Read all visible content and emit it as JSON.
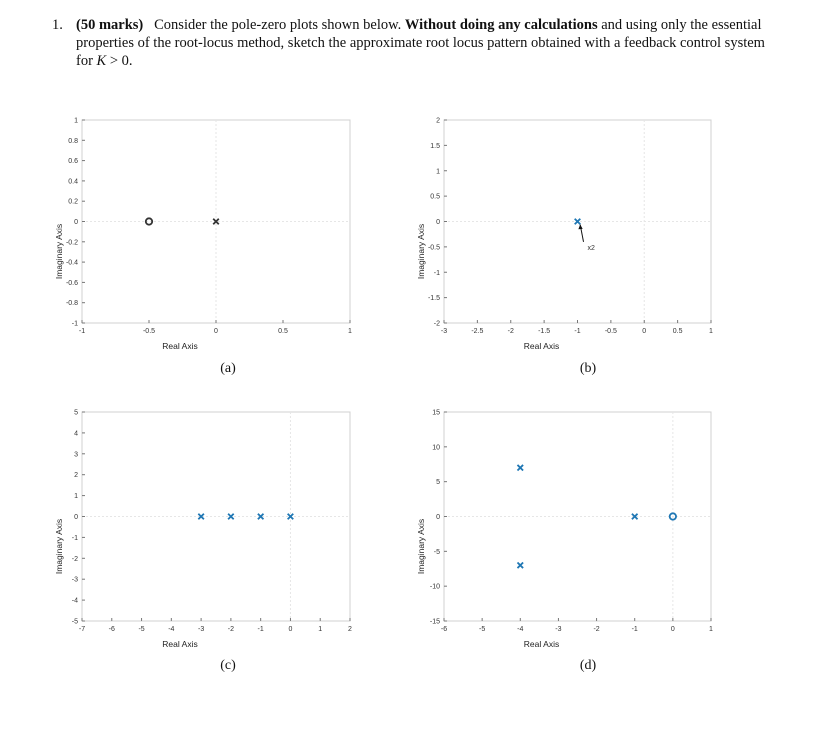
{
  "question": {
    "number": "1.",
    "marks": "(50 marks)",
    "text_1": "Consider the pole-zero plots shown below.",
    "bold_phrase": "Without doing any calculations",
    "text_2": "and using only the essential properties of the root-locus method, sketch the approximate root locus pattern obtained with a feedback control system for",
    "condition_var": "K",
    "condition_rest": "> 0."
  },
  "chart_data": [
    {
      "type": "scatter",
      "caption": "(a)",
      "xlabel": "Real Axis",
      "ylabel": "Imaginary Axis",
      "xlim": [
        -1,
        1
      ],
      "ylim": [
        -1,
        1
      ],
      "xticks": [
        -1,
        -0.5,
        0,
        0.5,
        1
      ],
      "xtick_labels": [
        "-1",
        "-0.5",
        "0",
        "0.5",
        "1"
      ],
      "yticks": [
        -1,
        -0.8,
        -0.6,
        -0.4,
        -0.2,
        0,
        0.2,
        0.4,
        0.6,
        0.8,
        1
      ],
      "ytick_labels": [
        "-1",
        "-0.8",
        "-0.6",
        "-0.4",
        "-0.2",
        "0",
        "0.2",
        "0.4",
        "0.6",
        "0.8",
        "1"
      ],
      "grid_x": [
        0
      ],
      "grid_y": [
        0
      ],
      "marker_color": "#333333",
      "poles": [
        {
          "x": 0,
          "y": 0
        }
      ],
      "zeros": [
        {
          "x": -0.5,
          "y": 0
        }
      ],
      "annotations": []
    },
    {
      "type": "scatter",
      "caption": "(b)",
      "xlabel": "Real Axis",
      "ylabel": "Imaginary Axis",
      "xlim": [
        -3,
        1
      ],
      "ylim": [
        -2,
        2
      ],
      "xticks": [
        -3,
        -2.5,
        -2,
        -1.5,
        -1,
        -0.5,
        0,
        0.5,
        1
      ],
      "xtick_labels": [
        "-3",
        "-2.5",
        "-2",
        "-1.5",
        "-1",
        "-0.5",
        "0",
        "0.5",
        "1"
      ],
      "yticks": [
        -2,
        -1.5,
        -1,
        -0.5,
        0,
        0.5,
        1,
        1.5,
        2
      ],
      "ytick_labels": [
        "-2",
        "-1.5",
        "-1",
        "-0.5",
        "0",
        "0.5",
        "1",
        "1.5",
        "2"
      ],
      "grid_x": [
        0
      ],
      "grid_y": [
        0
      ],
      "marker_color": "#1f77b4",
      "poles": [
        {
          "x": -1,
          "y": 0
        }
      ],
      "zeros": [],
      "annotations": [
        {
          "text": "x2",
          "x": -0.85,
          "y": -0.5,
          "arrow_to": {
            "x": -0.96,
            "y": -0.06
          }
        }
      ]
    },
    {
      "type": "scatter",
      "caption": "(c)",
      "xlabel": "Real Axis",
      "ylabel": "Imaginary Axis",
      "xlim": [
        -7,
        2
      ],
      "ylim": [
        -5,
        5
      ],
      "xticks": [
        -7,
        -6,
        -5,
        -4,
        -3,
        -2,
        -1,
        0,
        1,
        2
      ],
      "xtick_labels": [
        "-7",
        "-6",
        "-5",
        "-4",
        "-3",
        "-2",
        "-1",
        "0",
        "1",
        "2"
      ],
      "yticks": [
        -5,
        -4,
        -3,
        -2,
        -1,
        0,
        1,
        2,
        3,
        4,
        5
      ],
      "ytick_labels": [
        "-5",
        "-4",
        "-3",
        "-2",
        "-1",
        "0",
        "1",
        "2",
        "3",
        "4",
        "5"
      ],
      "grid_x": [
        0
      ],
      "grid_y": [
        0
      ],
      "marker_color": "#1f77b4",
      "poles": [
        {
          "x": -3,
          "y": 0
        },
        {
          "x": -2,
          "y": 0
        },
        {
          "x": -1,
          "y": 0
        },
        {
          "x": 0,
          "y": 0
        }
      ],
      "zeros": [],
      "annotations": []
    },
    {
      "type": "scatter",
      "caption": "(d)",
      "xlabel": "Real Axis",
      "ylabel": "Imaginary Axis",
      "xlim": [
        -6,
        1
      ],
      "ylim": [
        -15,
        15
      ],
      "xticks": [
        -6,
        -5,
        -4,
        -3,
        -2,
        -1,
        0,
        1
      ],
      "xtick_labels": [
        "-6",
        "-5",
        "-4",
        "-3",
        "-2",
        "-1",
        "0",
        "1"
      ],
      "yticks": [
        -15,
        -10,
        -5,
        0,
        5,
        10,
        15
      ],
      "ytick_labels": [
        "-15",
        "-10",
        "-5",
        "0",
        "5",
        "10",
        "15"
      ],
      "grid_x": [
        0
      ],
      "grid_y": [
        0
      ],
      "marker_color": "#1f77b4",
      "poles": [
        {
          "x": -4,
          "y": 7
        },
        {
          "x": -4,
          "y": -7
        },
        {
          "x": -1,
          "y": 0
        }
      ],
      "zeros": [
        {
          "x": 0,
          "y": 0
        }
      ],
      "annotations": []
    }
  ]
}
